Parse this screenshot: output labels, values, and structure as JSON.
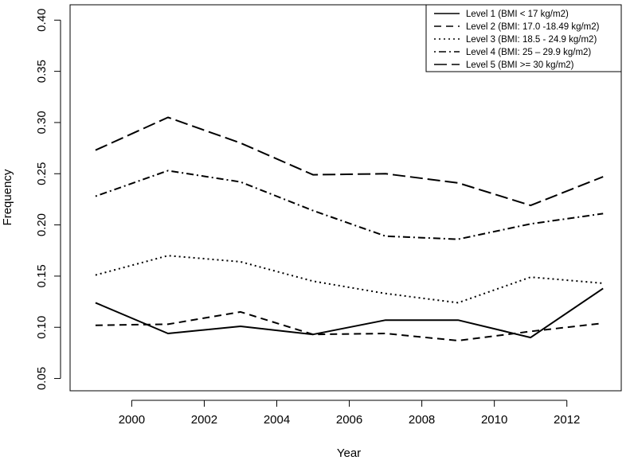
{
  "chart_data": {
    "type": "line",
    "title": "",
    "xlabel": "Year",
    "ylabel": "Frequency",
    "xlim": [
      1998.3,
      2013.5
    ],
    "ylim": [
      0.038,
      0.415
    ],
    "x_ticks": [
      2000,
      2002,
      2004,
      2006,
      2008,
      2010,
      2012
    ],
    "x_tick_labels": [
      "2000",
      "2002",
      "2004",
      "2006",
      "2008",
      "2010",
      "2012"
    ],
    "y_ticks": [
      0.05,
      0.1,
      0.15,
      0.2,
      0.25,
      0.3,
      0.35,
      0.4
    ],
    "y_tick_labels": [
      "0.05",
      "0.10",
      "0.15",
      "0.20",
      "0.25",
      "0.30",
      "0.35",
      "0.40"
    ],
    "grid": false,
    "legend_position": "top-right",
    "x": [
      1999,
      2001,
      2003,
      2005,
      2007,
      2009,
      2011,
      2013
    ],
    "series": [
      {
        "name": "Level 1 (BMI < 17 kg/m2)",
        "dash": "solid",
        "values": [
          0.124,
          0.094,
          0.101,
          0.093,
          0.107,
          0.107,
          0.09,
          0.138
        ]
      },
      {
        "name": "Level 2 (BMI: 17.0 -18.49 kg/m2)",
        "dash": "dashed",
        "values": [
          0.102,
          0.103,
          0.115,
          0.093,
          0.094,
          0.087,
          0.096,
          0.104
        ]
      },
      {
        "name": "Level 3 (BMI: 18.5 - 24.9 kg/m2)",
        "dash": "dotted",
        "values": [
          0.151,
          0.17,
          0.164,
          0.145,
          0.133,
          0.124,
          0.149,
          0.143
        ]
      },
      {
        "name": "Level 4 (BMI: 25 – 29.9 kg/m2)",
        "dash": "dotdash",
        "values": [
          0.228,
          0.253,
          0.242,
          0.214,
          0.189,
          0.186,
          0.201,
          0.211
        ]
      },
      {
        "name": "Level 5 (BMI >= 30 kg/m2)",
        "dash": "longdash",
        "values": [
          0.273,
          0.305,
          0.28,
          0.249,
          0.25,
          0.241,
          0.219,
          0.247
        ]
      }
    ]
  }
}
